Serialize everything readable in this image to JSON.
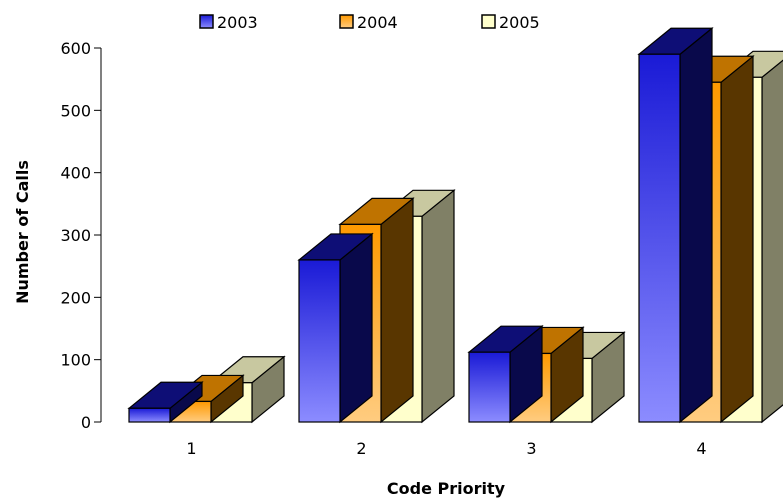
{
  "chart_data": {
    "type": "bar",
    "subtype": "3d-clustered-column",
    "categories": [
      "1",
      "2",
      "3",
      "4"
    ],
    "series": [
      {
        "name": "2003",
        "values": [
          22,
          260,
          112,
          590
        ],
        "color_top": "#1a1ad6",
        "color_bottom": "#8c8cff"
      },
      {
        "name": "2004",
        "values": [
          33,
          317,
          110,
          545
        ],
        "color_top": "#ff9900",
        "color_bottom": "#ffcc80"
      },
      {
        "name": "2005",
        "values": [
          63,
          330,
          102,
          553
        ],
        "color_top": "#ffffcc",
        "color_bottom": "#ffffcc"
      }
    ],
    "xlabel": "Code Priority",
    "ylabel": "Number of Calls",
    "ylim": [
      0,
      600
    ],
    "yticks": [
      0,
      100,
      200,
      300,
      400,
      500,
      600
    ],
    "grid": false,
    "legend_position": "top"
  }
}
